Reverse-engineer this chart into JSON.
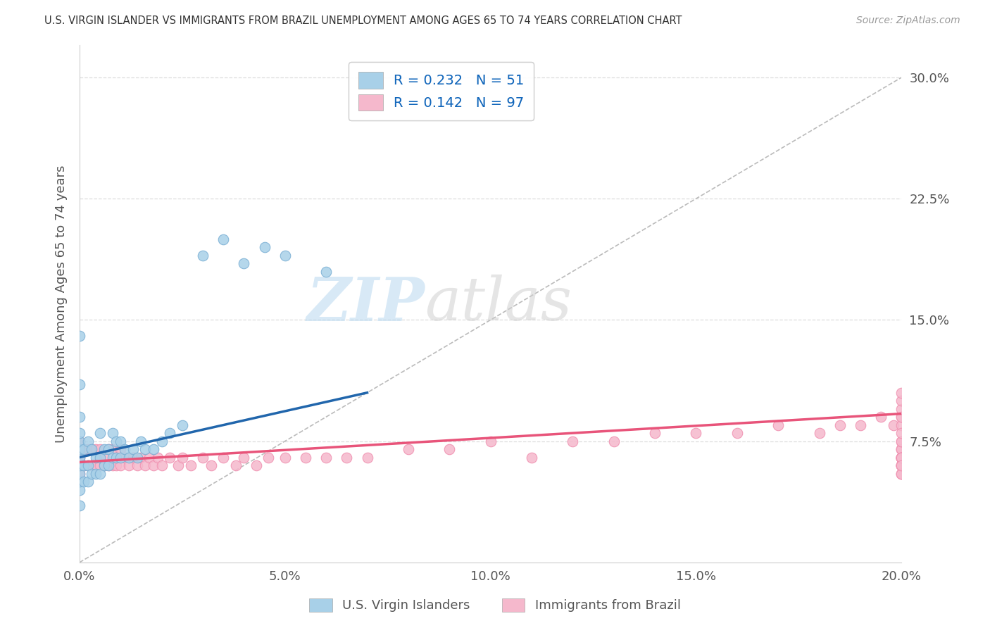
{
  "title": "U.S. VIRGIN ISLANDER VS IMMIGRANTS FROM BRAZIL UNEMPLOYMENT AMONG AGES 65 TO 74 YEARS CORRELATION CHART",
  "source": "Source: ZipAtlas.com",
  "ylabel": "Unemployment Among Ages 65 to 74 years",
  "xlim": [
    0.0,
    0.2
  ],
  "ylim": [
    0.0,
    0.32
  ],
  "xticks": [
    0.0,
    0.05,
    0.1,
    0.15,
    0.2
  ],
  "xtick_labels": [
    "0.0%",
    "5.0%",
    "10.0%",
    "15.0%",
    "20.0%"
  ],
  "yticks": [
    0.0,
    0.075,
    0.15,
    0.225,
    0.3
  ],
  "ytick_labels": [
    "",
    "7.5%",
    "15.0%",
    "22.5%",
    "30.0%"
  ],
  "blue_R": 0.232,
  "blue_N": 51,
  "pink_R": 0.142,
  "pink_N": 97,
  "blue_color": "#A8D0E8",
  "pink_color": "#F5B8CC",
  "blue_edge_color": "#7AAFD4",
  "pink_edge_color": "#F090B0",
  "blue_line_color": "#2166AC",
  "pink_line_color": "#E8547A",
  "blue_label": "U.S. Virgin Islanders",
  "pink_label": "Immigrants from Brazil",
  "watermark_text": "ZIPatlas",
  "background_color": "#FFFFFF",
  "diag_line_color": "#BBBBBB",
  "grid_color": "#DDDDDD",
  "blue_x": [
    0.0,
    0.0,
    0.0,
    0.0,
    0.0,
    0.0,
    0.0,
    0.0,
    0.0,
    0.0,
    0.0,
    0.0,
    0.001,
    0.001,
    0.001,
    0.002,
    0.002,
    0.002,
    0.003,
    0.003,
    0.004,
    0.004,
    0.005,
    0.005,
    0.005,
    0.006,
    0.006,
    0.007,
    0.007,
    0.008,
    0.008,
    0.009,
    0.009,
    0.01,
    0.01,
    0.011,
    0.012,
    0.013,
    0.014,
    0.015,
    0.016,
    0.018,
    0.02,
    0.022,
    0.025,
    0.03,
    0.035,
    0.04,
    0.045,
    0.05,
    0.06
  ],
  "blue_y": [
    0.035,
    0.045,
    0.05,
    0.055,
    0.06,
    0.065,
    0.07,
    0.075,
    0.08,
    0.09,
    0.11,
    0.14,
    0.05,
    0.06,
    0.07,
    0.05,
    0.06,
    0.075,
    0.055,
    0.07,
    0.055,
    0.065,
    0.055,
    0.065,
    0.08,
    0.06,
    0.07,
    0.06,
    0.07,
    0.065,
    0.08,
    0.065,
    0.075,
    0.065,
    0.075,
    0.07,
    0.065,
    0.07,
    0.065,
    0.075,
    0.07,
    0.07,
    0.075,
    0.08,
    0.085,
    0.19,
    0.2,
    0.185,
    0.195,
    0.19,
    0.18
  ],
  "pink_x": [
    0.0,
    0.0,
    0.0,
    0.0,
    0.001,
    0.001,
    0.002,
    0.002,
    0.003,
    0.003,
    0.004,
    0.004,
    0.005,
    0.005,
    0.006,
    0.006,
    0.007,
    0.007,
    0.008,
    0.008,
    0.009,
    0.009,
    0.01,
    0.01,
    0.011,
    0.012,
    0.013,
    0.014,
    0.015,
    0.016,
    0.017,
    0.018,
    0.019,
    0.02,
    0.022,
    0.024,
    0.025,
    0.027,
    0.03,
    0.032,
    0.035,
    0.038,
    0.04,
    0.043,
    0.046,
    0.05,
    0.055,
    0.06,
    0.065,
    0.07,
    0.08,
    0.09,
    0.1,
    0.11,
    0.12,
    0.13,
    0.14,
    0.15,
    0.16,
    0.17,
    0.18,
    0.185,
    0.19,
    0.195,
    0.198,
    0.2,
    0.2,
    0.2,
    0.2,
    0.2,
    0.2,
    0.2,
    0.2,
    0.2,
    0.2,
    0.2,
    0.2,
    0.2,
    0.2,
    0.2,
    0.2,
    0.2,
    0.2,
    0.2,
    0.2,
    0.2,
    0.2,
    0.2,
    0.2,
    0.2,
    0.2,
    0.2,
    0.2,
    0.2,
    0.2,
    0.2,
    0.2
  ],
  "pink_y": [
    0.055,
    0.065,
    0.06,
    0.075,
    0.06,
    0.07,
    0.06,
    0.07,
    0.06,
    0.07,
    0.06,
    0.07,
    0.06,
    0.07,
    0.06,
    0.065,
    0.06,
    0.07,
    0.06,
    0.07,
    0.06,
    0.065,
    0.06,
    0.07,
    0.065,
    0.06,
    0.065,
    0.06,
    0.065,
    0.06,
    0.065,
    0.06,
    0.065,
    0.06,
    0.065,
    0.06,
    0.065,
    0.06,
    0.065,
    0.06,
    0.065,
    0.06,
    0.065,
    0.06,
    0.065,
    0.065,
    0.065,
    0.065,
    0.065,
    0.065,
    0.07,
    0.07,
    0.075,
    0.065,
    0.075,
    0.075,
    0.08,
    0.08,
    0.08,
    0.085,
    0.08,
    0.085,
    0.085,
    0.09,
    0.085,
    0.085,
    0.09,
    0.065,
    0.065,
    0.07,
    0.065,
    0.06,
    0.065,
    0.07,
    0.065,
    0.06,
    0.065,
    0.055,
    0.065,
    0.06,
    0.055,
    0.06,
    0.07,
    0.065,
    0.075,
    0.065,
    0.06,
    0.065,
    0.055,
    0.065,
    0.06,
    0.075,
    0.08,
    0.09,
    0.095,
    0.1,
    0.105
  ],
  "blue_line_x": [
    0.0,
    0.07
  ],
  "blue_line_y": [
    0.065,
    0.105
  ],
  "pink_line_x": [
    0.0,
    0.2
  ],
  "pink_line_y": [
    0.062,
    0.092
  ],
  "ref_line_x": [
    0.0,
    0.2
  ],
  "ref_line_y": [
    0.0,
    0.3
  ]
}
